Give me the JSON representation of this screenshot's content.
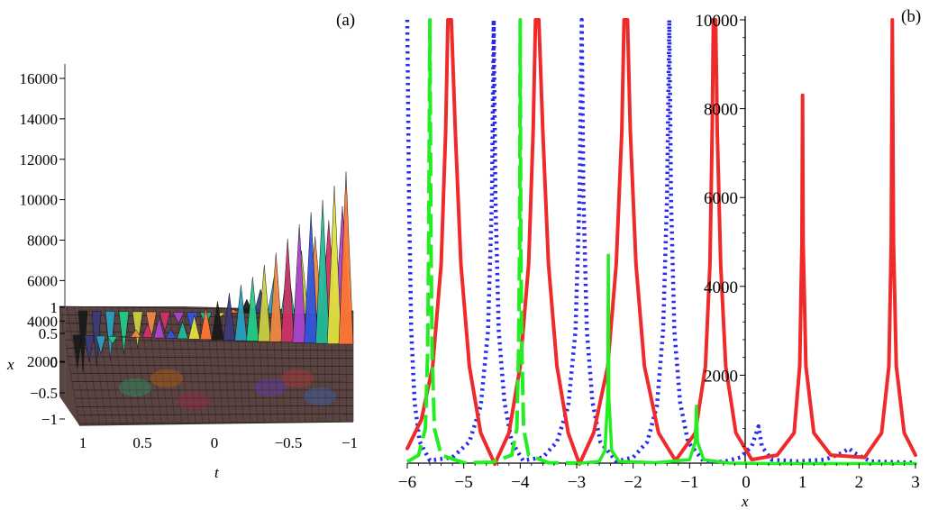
{
  "panel_labels": {
    "a": "(a)",
    "b": "(b)"
  },
  "chart_data": [
    {
      "panel": "(a)",
      "type": "surface3d",
      "xlabel": "t",
      "ylabel": "x",
      "z_ticks": [
        "16000",
        "14000",
        "12000",
        "10000",
        "8000",
        "6000",
        "4000",
        "2000"
      ],
      "x_axis_ticks": [
        "1",
        "0.5",
        "0",
        "-0.5",
        "-1"
      ],
      "y_axis_ticks": [
        "1",
        "0.5",
        "0",
        "-0.5",
        "-1"
      ],
      "t_range": [
        1,
        -1
      ],
      "x_range": [
        -1,
        1
      ],
      "z_range": [
        0,
        16000
      ],
      "front_spike_tops": [
        1500,
        1800,
        2200,
        2700,
        3000,
        3400,
        3700,
        4000,
        3400,
        3800,
        4100,
        4500,
        4800,
        5200,
        5600,
        6000,
        6600,
        7200,
        7900,
        8600,
        9200,
        9800,
        10500,
        11200
      ],
      "back_spike_tops": [
        1300,
        1600,
        1900,
        2200,
        2500,
        2900,
        3300,
        3700,
        3200,
        3600,
        4000,
        4400,
        4900,
        5400,
        6000,
        6600,
        7300,
        8000,
        8800,
        9500
      ]
    },
    {
      "panel": "(b)",
      "type": "line",
      "xlabel": "x",
      "ylabel": "",
      "xlim": [
        -6,
        3
      ],
      "ylim": [
        0,
        10000
      ],
      "x_ticks": [
        "-6",
        "-5",
        "-4",
        "-3",
        "-2",
        "-1",
        "0",
        "1",
        "2",
        "3"
      ],
      "y_ticks": [
        "2000",
        "4000",
        "6000",
        "8000",
        "10000"
      ],
      "series": [
        {
          "style": "solid",
          "color": "#ee2a2a",
          "points": [
            [
              -6.0,
              350
            ],
            [
              -5.75,
              1000
            ],
            [
              -5.55,
              2200
            ],
            [
              -5.4,
              4500
            ],
            [
              -5.32,
              7500
            ],
            [
              -5.28,
              10000
            ],
            [
              -5.22,
              10000
            ],
            [
              -5.15,
              7500
            ],
            [
              -5.05,
              4500
            ],
            [
              -4.9,
              2200
            ],
            [
              -4.7,
              700
            ],
            [
              -4.45,
              0
            ],
            [
              -4.2,
              700
            ],
            [
              -4.0,
              2200
            ],
            [
              -3.85,
              4500
            ],
            [
              -3.77,
              7500
            ],
            [
              -3.73,
              10000
            ],
            [
              -3.67,
              10000
            ],
            [
              -3.6,
              7500
            ],
            [
              -3.5,
              4500
            ],
            [
              -3.35,
              2200
            ],
            [
              -3.15,
              700
            ],
            [
              -2.95,
              0
            ],
            [
              -2.7,
              700
            ],
            [
              -2.45,
              2200
            ],
            [
              -2.3,
              4500
            ],
            [
              -2.2,
              7500
            ],
            [
              -2.16,
              10000
            ],
            [
              -2.1,
              10000
            ],
            [
              -2.05,
              7500
            ],
            [
              -1.95,
              4500
            ],
            [
              -1.8,
              2200
            ],
            [
              -1.55,
              700
            ],
            [
              -1.25,
              80
            ],
            [
              -0.9,
              700
            ],
            [
              -0.72,
              2200
            ],
            [
              -0.64,
              4500
            ],
            [
              -0.6,
              7500
            ],
            [
              -0.58,
              10000
            ],
            [
              -0.54,
              10000
            ],
            [
              -0.51,
              7500
            ],
            [
              -0.45,
              4500
            ],
            [
              -0.36,
              2200
            ],
            [
              -0.18,
              700
            ],
            [
              0.1,
              100
            ],
            [
              0.55,
              200
            ],
            [
              0.85,
              700
            ],
            [
              0.95,
              2200
            ],
            [
              0.99,
              5000
            ],
            [
              1.0,
              8300
            ],
            [
              1.01,
              5000
            ],
            [
              1.06,
              2200
            ],
            [
              1.2,
              700
            ],
            [
              1.5,
              200
            ],
            [
              2.1,
              150
            ],
            [
              2.4,
              700
            ],
            [
              2.53,
              2200
            ],
            [
              2.57,
              5000
            ],
            [
              2.59,
              10000
            ],
            [
              2.61,
              5000
            ],
            [
              2.66,
              2200
            ],
            [
              2.8,
              700
            ],
            [
              3.0,
              200
            ]
          ]
        },
        {
          "style": "dotted",
          "color": "#2a2aee",
          "points": [
            [
              -6.0,
              10000
            ],
            [
              -5.97,
              6000
            ],
            [
              -5.93,
              3000
            ],
            [
              -5.87,
              1400
            ],
            [
              -5.78,
              500
            ],
            [
              -5.6,
              80
            ],
            [
              -5.2,
              150
            ],
            [
              -4.9,
              500
            ],
            [
              -4.7,
              1300
            ],
            [
              -4.57,
              3000
            ],
            [
              -4.5,
              6000
            ],
            [
              -4.47,
              10000
            ],
            [
              -4.44,
              6000
            ],
            [
              -4.38,
              3000
            ],
            [
              -4.28,
              1400
            ],
            [
              -4.15,
              500
            ],
            [
              -3.95,
              80
            ],
            [
              -3.6,
              150
            ],
            [
              -3.35,
              500
            ],
            [
              -3.15,
              1300
            ],
            [
              -3.02,
              3000
            ],
            [
              -2.95,
              6000
            ],
            [
              -2.91,
              10000
            ],
            [
              -2.88,
              6000
            ],
            [
              -2.82,
              3000
            ],
            [
              -2.72,
              1400
            ],
            [
              -2.58,
              500
            ],
            [
              -2.3,
              60
            ],
            [
              -2.0,
              150
            ],
            [
              -1.75,
              500
            ],
            [
              -1.58,
              1300
            ],
            [
              -1.47,
              3000
            ],
            [
              -1.4,
              6000
            ],
            [
              -1.36,
              10000
            ],
            [
              -1.33,
              6000
            ],
            [
              -1.27,
              3000
            ],
            [
              -1.17,
              1400
            ],
            [
              -1.03,
              500
            ],
            [
              -0.75,
              60
            ],
            [
              -0.4,
              50
            ],
            [
              -0.1,
              150
            ],
            [
              0.1,
              400
            ],
            [
              0.22,
              850
            ],
            [
              0.28,
              400
            ],
            [
              0.45,
              100
            ],
            [
              0.9,
              60
            ],
            [
              1.4,
              100
            ],
            [
              1.7,
              250
            ],
            [
              1.82,
              350
            ],
            [
              1.92,
              250
            ],
            [
              2.2,
              60
            ],
            [
              3.0,
              30
            ]
          ]
        },
        {
          "style": "dashed",
          "color": "#22ee22",
          "points": [
            [
              -6.0,
              50
            ],
            [
              -5.8,
              200
            ],
            [
              -5.68,
              800
            ],
            [
              -5.64,
              2500
            ],
            [
              -5.62,
              5000
            ],
            [
              -5.6,
              10000
            ],
            [
              -5.58,
              5000
            ],
            [
              -5.56,
              2500
            ],
            [
              -5.52,
              800
            ],
            [
              -5.4,
              200
            ],
            [
              -5.0,
              30
            ],
            [
              -4.5,
              40
            ],
            [
              -4.15,
              200
            ],
            [
              -4.06,
              800
            ],
            [
              -4.03,
              2500
            ],
            [
              -4.01,
              5000
            ],
            [
              -4.0,
              10000
            ],
            [
              -3.99,
              5000
            ],
            [
              -3.97,
              2500
            ],
            [
              -3.94,
              800
            ],
            [
              -3.85,
              200
            ],
            [
              -3.5,
              30
            ],
            [
              -3.0,
              20
            ]
          ]
        },
        {
          "style": "solid-thin",
          "color": "#22ee22",
          "points": [
            [
              -3.0,
              10
            ],
            [
              -2.6,
              60
            ],
            [
              -2.5,
              300
            ],
            [
              -2.45,
              1500
            ],
            [
              -2.44,
              4700
            ],
            [
              -2.43,
              1500
            ],
            [
              -2.38,
              300
            ],
            [
              -2.25,
              60
            ],
            [
              -1.6,
              30
            ],
            [
              -1.0,
              100
            ],
            [
              -0.9,
              500
            ],
            [
              -0.88,
              1300
            ],
            [
              -0.86,
              500
            ],
            [
              -0.75,
              100
            ],
            [
              -0.3,
              20
            ],
            [
              0.5,
              10
            ],
            [
              3.0,
              10
            ]
          ]
        }
      ]
    }
  ]
}
